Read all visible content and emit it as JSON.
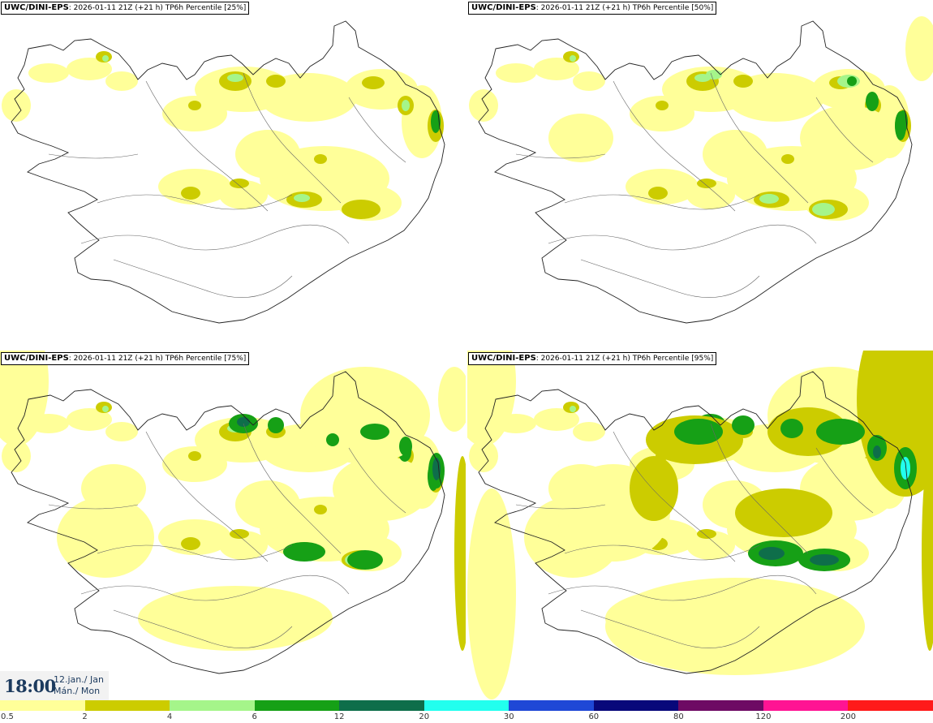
{
  "panels": [
    {
      "model": "UWC/DINI-EPS",
      "run": "2026-01-11 21Z (+21 h) TP6h Percentile [25%]",
      "percentile": 25
    },
    {
      "model": "UWC/DINI-EPS",
      "run": "2026-01-11 21Z (+21 h) TP6h Percentile [50%]",
      "percentile": 50
    },
    {
      "model": "UWC/DINI-EPS",
      "run": "2026-01-11 21Z (+21 h) TP6h Percentile [75%]",
      "percentile": 75
    },
    {
      "model": "UWC/DINI-EPS",
      "run": "2026-01-11 21Z (+21 h) TP6h Percentile [95%]",
      "percentile": 95
    }
  ],
  "time": {
    "hour": "18:00",
    "date": "12.jan./ Jan",
    "day": "Mán./ Mon"
  },
  "legend": {
    "colors": [
      "#ffff99",
      "#cccc00",
      "#a5f58a",
      "#16a016",
      "#0e6e4a",
      "#22ffee",
      "#1f48d6",
      "#08087a",
      "#6e0a64",
      "#ff1493",
      "#ff1a1a"
    ],
    "labels": [
      "0.5",
      "2",
      "4",
      "6",
      "12",
      "20",
      "30",
      "60",
      "80",
      "120",
      "200"
    ]
  },
  "shade_colors": {
    "yellow": "#ffff99",
    "olive": "#cccc00",
    "lightgreen": "#a5f58a",
    "green": "#16a016",
    "darkgreen": "#0e6e4a",
    "cyan": "#22ffee"
  }
}
